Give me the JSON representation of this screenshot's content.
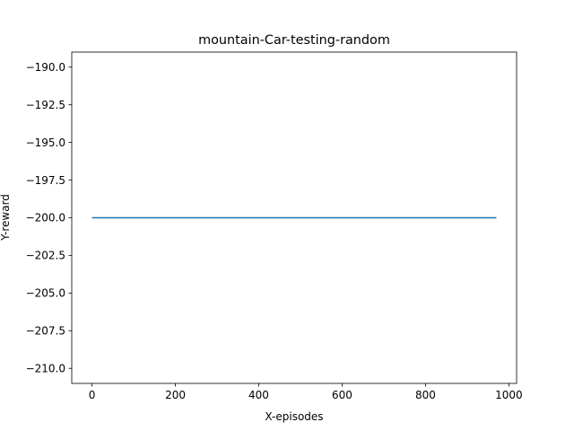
{
  "chart_data": {
    "type": "line",
    "title": "mountain-Car-testing-random",
    "xlabel": "X-episodes",
    "ylabel": "Y-reward",
    "xlim": [
      -48.5,
      1018.5
    ],
    "ylim": [
      -211.0,
      -189.0
    ],
    "xticks": [
      0,
      200,
      400,
      600,
      800,
      1000
    ],
    "xtick_labels": [
      "0",
      "200",
      "400",
      "600",
      "800",
      "1000"
    ],
    "yticks": [
      -190.0,
      -192.5,
      -195.0,
      -197.5,
      -200.0,
      -202.5,
      -205.0,
      -207.5,
      -210.0
    ],
    "ytick_labels": [
      "−190.0",
      "−192.5",
      "−195.0",
      "−197.5",
      "−200.0",
      "−202.5",
      "−205.0",
      "−207.5",
      "−210.0"
    ],
    "grid": false,
    "series": [
      {
        "color": "#1f77b4",
        "x": [
          0,
          970
        ],
        "y": [
          -200,
          -200
        ]
      }
    ]
  }
}
